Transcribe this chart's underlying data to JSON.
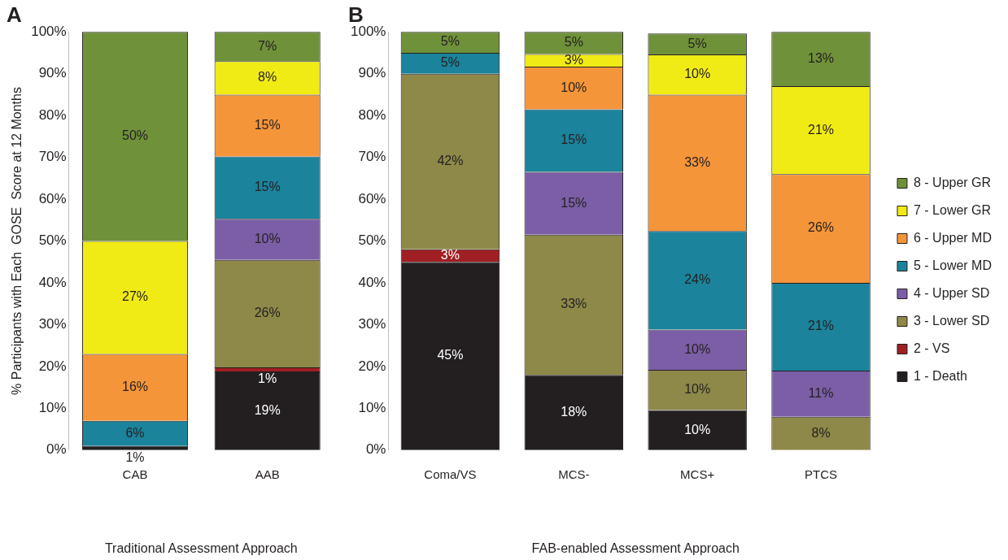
{
  "chart_data": [
    {
      "type": "bar",
      "title": "A",
      "xlabel": "Traditional Assessment Approach",
      "ylabel": "% Participants with Each  GOSE  Score at 12 Months",
      "categories": [
        "CAB",
        "AAB"
      ],
      "stacked": true,
      "grid": false,
      "legend": false,
      "ylim": [
        0,
        100
      ],
      "yticks": [
        {
          "value": 0,
          "label": "0%"
        },
        {
          "value": 10,
          "label": "10%"
        },
        {
          "value": 20,
          "label": "20%"
        },
        {
          "value": 30,
          "label": "30%"
        },
        {
          "value": 40,
          "label": "40%"
        },
        {
          "value": 50,
          "label": "50%"
        },
        {
          "value": 60,
          "label": "60%"
        },
        {
          "value": 70,
          "label": "70%"
        },
        {
          "value": 80,
          "label": "80%"
        },
        {
          "value": 90,
          "label": "90%"
        },
        {
          "value": 100,
          "label": "100%"
        }
      ],
      "series": [
        {
          "color": "#231f20",
          "values": [
            1,
            18.8
          ],
          "value_labels": [
            "1%",
            "19%"
          ]
        },
        {
          "color": "#a01f22",
          "values": [
            null,
            1
          ],
          "value_labels": [
            null,
            "1%"
          ]
        },
        {
          "color": "#8e8849",
          "values": [
            null,
            25.7
          ],
          "value_labels": [
            null,
            "26%"
          ]
        },
        {
          "color": "#7b5ea6",
          "values": [
            null,
            9.8
          ],
          "value_labels": [
            null,
            "10%"
          ]
        },
        {
          "color": "#1b839b",
          "values": [
            6,
            14.9
          ],
          "value_labels": [
            "6%",
            "15%"
          ]
        },
        {
          "color": "#f5953a",
          "values": [
            16,
            14.8
          ],
          "value_labels": [
            "16%",
            "15%"
          ]
        },
        {
          "color": "#f0eb14",
          "values": [
            27,
            8
          ],
          "value_labels": [
            "27%",
            "8%"
          ]
        },
        {
          "color": "#6f9139",
          "values": [
            50,
            7
          ],
          "value_labels": [
            "50%",
            "7%"
          ]
        }
      ]
    },
    {
      "type": "bar",
      "title": "B",
      "xlabel": "FAB-enabled Assessment Approach",
      "categories": [
        "Coma/VS",
        "MCS-",
        "MCS+",
        "PTCS"
      ],
      "stacked": true,
      "grid": false,
      "legend": "right",
      "ylim": [
        0,
        100
      ],
      "yticks": [
        {
          "value": 0,
          "label": "0%"
        },
        {
          "value": 10,
          "label": "10%"
        },
        {
          "value": 20,
          "label": "20%"
        },
        {
          "value": 30,
          "label": "30%"
        },
        {
          "value": 40,
          "label": "40%"
        },
        {
          "value": 50,
          "label": "50%"
        },
        {
          "value": 60,
          "label": "60%"
        },
        {
          "value": 70,
          "label": "70%"
        },
        {
          "value": 80,
          "label": "80%"
        },
        {
          "value": 90,
          "label": "90%"
        },
        {
          "value": 100,
          "label": "100%"
        }
      ],
      "series": [
        {
          "name": "1 - Death",
          "color": "#231f20",
          "values": [
            45,
            18,
            9.6,
            null
          ],
          "value_labels": [
            "45%",
            "18%",
            "10%",
            null
          ]
        },
        {
          "name": "2 - VS",
          "color": "#a01f22",
          "values": [
            3,
            null,
            null,
            null
          ],
          "value_labels": [
            "3%",
            null,
            null,
            null
          ]
        },
        {
          "name": "3 - Lower SD",
          "color": "#8e8849",
          "values": [
            42,
            33.5,
            9.6,
            8
          ],
          "value_labels": [
            "42%",
            "33%",
            "10%",
            "8%"
          ]
        },
        {
          "name": "4 - Upper SD",
          "color": "#7b5ea6",
          "values": [
            null,
            15,
            9.6,
            11
          ],
          "value_labels": [
            null,
            "15%",
            "10%",
            "11%"
          ]
        },
        {
          "name": "5 - Lower MD",
          "color": "#1b839b",
          "values": [
            5,
            15,
            23.6,
            21
          ],
          "value_labels": [
            "5%",
            "15%",
            "24%",
            "21%"
          ]
        },
        {
          "name": "6 - Upper MD",
          "color": "#f5953a",
          "values": [
            null,
            10.2,
            32.6,
            26
          ],
          "value_labels": [
            null,
            "10%",
            "33%",
            "26%"
          ]
        },
        {
          "name": "7 - Lower GR",
          "color": "#f0eb14",
          "values": [
            null,
            3,
            9.6,
            21
          ],
          "value_labels": [
            null,
            "3%",
            "10%",
            "21%"
          ]
        },
        {
          "name": "8 - Upper GR",
          "color": "#6f9139",
          "values": [
            5,
            5.3,
            5,
            13
          ],
          "value_labels": [
            "5%",
            "5%",
            "5%",
            "13%"
          ]
        }
      ]
    }
  ]
}
